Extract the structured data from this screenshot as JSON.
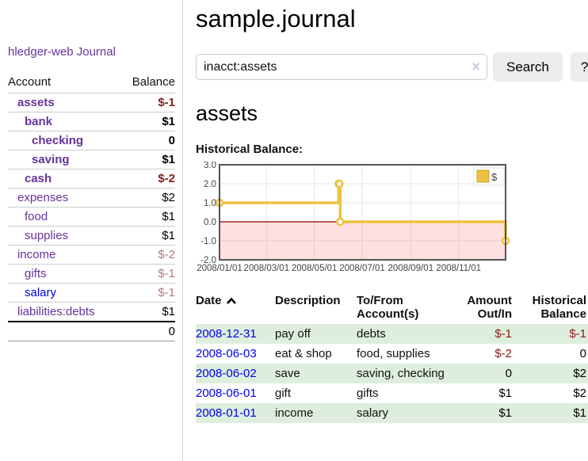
{
  "app": {
    "title": "hledger-web"
  },
  "colors": {
    "link_purple": "#663399",
    "link_blue": "#0000ee",
    "neg_strong": "#8b1a1a",
    "neg_muted": "#bb7777",
    "stripe": "#ddeedd",
    "btn_bg": "#ececec",
    "input_border": "#cccccc",
    "clear_x": "#cfc2e0",
    "divider": "#dddddd"
  },
  "sidebar": {
    "nav": [
      {
        "label": "Journal"
      }
    ],
    "accounts_table": {
      "headers": {
        "account": "Account",
        "balance": "Balance"
      },
      "rows": [
        {
          "name": "assets",
          "depth": 1,
          "bold": true,
          "link_color": "purple",
          "balance": "$-1",
          "balance_color": "neg_strong"
        },
        {
          "name": "bank",
          "depth": 2,
          "bold": true,
          "link_color": "purple",
          "balance": "$1",
          "balance_color": "pos"
        },
        {
          "name": "checking",
          "depth": 3,
          "bold": true,
          "link_color": "purple",
          "balance": "0",
          "balance_color": "pos"
        },
        {
          "name": "saving",
          "depth": 3,
          "bold": true,
          "link_color": "purple",
          "balance": "$1",
          "balance_color": "pos"
        },
        {
          "name": "cash",
          "depth": 2,
          "bold": true,
          "link_color": "purple",
          "balance": "$-2",
          "balance_color": "neg_strong"
        },
        {
          "name": "expenses",
          "depth": 1,
          "bold": false,
          "link_color": "purple",
          "balance": "$2",
          "balance_color": "pos"
        },
        {
          "name": "food",
          "depth": 2,
          "bold": false,
          "link_color": "purple",
          "balance": "$1",
          "balance_color": "pos"
        },
        {
          "name": "supplies",
          "depth": 2,
          "bold": false,
          "link_color": "purple",
          "balance": "$1",
          "balance_color": "pos"
        },
        {
          "name": "income",
          "depth": 1,
          "bold": false,
          "link_color": "purple",
          "balance": "$-2",
          "balance_color": "neg_muted"
        },
        {
          "name": "gifts",
          "depth": 2,
          "bold": false,
          "link_color": "purple",
          "balance": "$-1",
          "balance_color": "neg_muted"
        },
        {
          "name": "salary",
          "depth": 2,
          "bold": false,
          "link_color": "blue",
          "balance": "$-1",
          "balance_color": "neg_muted"
        },
        {
          "name": "liabilities:debts",
          "depth": 1,
          "bold": false,
          "link_color": "purple",
          "balance": "$1",
          "balance_color": "pos"
        }
      ],
      "total": "0"
    }
  },
  "main": {
    "title": "sample.journal",
    "search": {
      "value": "inacct:assets",
      "clear_icon": "×",
      "button": "Search",
      "help_button": "?"
    },
    "account_heading": "assets",
    "chart_label": "Historical Balance:"
  },
  "chart_data": {
    "type": "line",
    "step": true,
    "title": "Historical Balance",
    "series": [
      {
        "name": "$",
        "color": "#EDC240",
        "points": [
          [
            "2008-01-01",
            1
          ],
          [
            "2008-06-01",
            2
          ],
          [
            "2008-06-02",
            2
          ],
          [
            "2008-06-03",
            0
          ],
          [
            "2008-12-31",
            -1
          ]
        ]
      }
    ],
    "x_range": [
      "2008-01-01",
      "2008-12-31"
    ],
    "ylim": [
      -2,
      3
    ],
    "y_ticks": [
      3.0,
      2.0,
      1.0,
      0.0,
      -1.0,
      -2.0
    ],
    "x_ticks": [
      "2008/01/01",
      "2008/03/01",
      "2008/05/01",
      "2008/07/01",
      "2008/09/01",
      "2008/11/01"
    ],
    "grid": true,
    "legend_position": "top-right",
    "negative_region_fill": "rgba(255,0,0,0.12)",
    "zero_line_color": "#8b0000",
    "border_color": "#545454"
  },
  "register": {
    "headers": {
      "date": "Date",
      "description": "Description",
      "tofrom_1": "To/From",
      "tofrom_2": "Account(s)",
      "amount_1": "Amount",
      "amount_2": "Out/In",
      "hist_1": "Historical",
      "hist_2": "Balance"
    },
    "rows": [
      {
        "date": "2008-12-31",
        "description": "pay off",
        "accounts": "debts",
        "amount": "$-1",
        "amount_neg": true,
        "balance": "$-1",
        "balance_neg": true
      },
      {
        "date": "2008-06-03",
        "description": "eat & shop",
        "accounts": "food, supplies",
        "amount": "$-2",
        "amount_neg": true,
        "balance": "0",
        "balance_neg": false
      },
      {
        "date": "2008-06-02",
        "description": "save",
        "accounts": "saving, checking",
        "amount": "0",
        "amount_neg": false,
        "balance": "$2",
        "balance_neg": false
      },
      {
        "date": "2008-06-01",
        "description": "gift",
        "accounts": "gifts",
        "amount": "$1",
        "amount_neg": false,
        "balance": "$2",
        "balance_neg": false
      },
      {
        "date": "2008-01-01",
        "description": "income",
        "accounts": "salary",
        "amount": "$1",
        "amount_neg": false,
        "balance": "$1",
        "balance_neg": false
      }
    ]
  }
}
